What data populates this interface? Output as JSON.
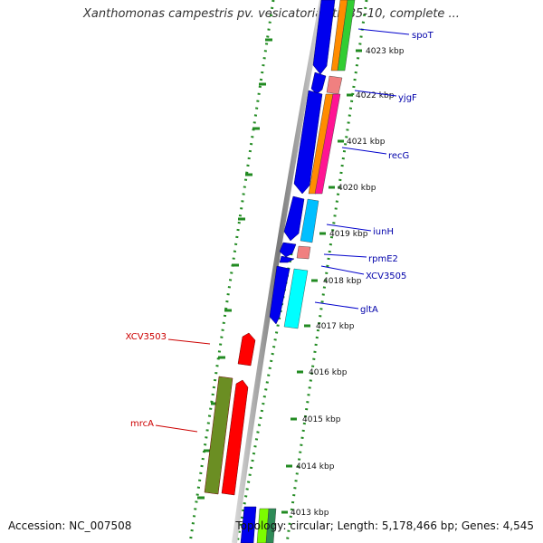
{
  "title": "Xanthomonas campestris pv. vesicatoria str. 85-10, complete ...",
  "accession": "Accession: NC_007508",
  "stats": "Topology: circular; Length: 5,178,466 bp; Genes: 4,545",
  "colors": {
    "backbone": "#999999",
    "tick": "#228b22",
    "forward_label": "#00008b",
    "reverse_label": "#cc0000",
    "cds_forward": "#0000ee",
    "cds_reverse": "#ff0000",
    "cog_orange": "#ff8c00",
    "cog_green": "#32cd32",
    "cog_pink": "#ff1493",
    "cog_lightpink": "#f08080",
    "cog_cyan": "#00bfff",
    "cog_aqua": "#00ffff",
    "cog_olive": "#6b8e23"
  },
  "scale": {
    "unit": "kbp",
    "ticks": [
      {
        "label": "4023 kbp"
      },
      {
        "label": "4022 kbp"
      },
      {
        "label": "4021 kbp"
      },
      {
        "label": "4020 kbp"
      },
      {
        "label": "4019 kbp"
      },
      {
        "label": "4018 kbp"
      },
      {
        "label": "4017 kbp"
      },
      {
        "label": "4016 kbp"
      },
      {
        "label": "4015 kbp"
      },
      {
        "label": "4014 kbp"
      },
      {
        "label": "4013 kbp"
      }
    ]
  },
  "genes": {
    "forward": [
      "spoT",
      "yjgF",
      "recG",
      "iunH",
      "rpmE2",
      "XCV3505",
      "gltA"
    ],
    "reverse": [
      "XCV3503",
      "mrcA"
    ]
  }
}
